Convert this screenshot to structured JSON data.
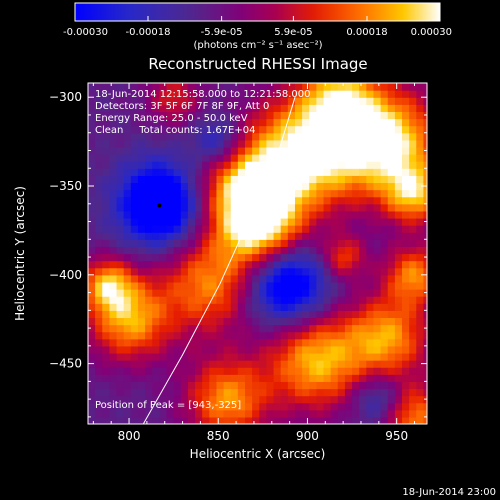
{
  "chart_data": {
    "type": "heatmap",
    "title": "Reconstructed RHESSI Image",
    "xlabel": "Heliocentric X (arcsec)",
    "ylabel": "Heliocentric Y (arcsec)",
    "xlim": [
      777,
      967
    ],
    "ylim": [
      -484,
      -292
    ],
    "x_ticks": [
      "800",
      "850",
      "900",
      "950"
    ],
    "y_ticks": [
      "-300",
      "-350",
      "-400",
      "-450"
    ],
    "x_tick_values": [
      800,
      850,
      900,
      950
    ],
    "y_tick_values": [
      -300,
      -350,
      -400,
      -450
    ],
    "colorbar": {
      "range": [
        -0.0003,
        0.0003
      ],
      "tick_labels": [
        "-0.00030",
        "-0.00018",
        "-5.9e-05",
        "5.9e-05",
        "0.00018",
        "0.00030"
      ],
      "tick_values": [
        -0.0003,
        -0.00018,
        -5.9e-05,
        5.9e-05,
        0.00018,
        0.0003
      ],
      "unit_label": "(photons cm⁻² s⁻¹ asec⁻²)"
    },
    "info_lines": [
      "18-Jun-2014 12:15:58.000 to 12:21:58.000",
      "Detectors: 3F 5F 6F 7F 8F 9F, Att 0",
      "Energy Range: 25.0 - 50.0 keV",
      "Clean     Total counts: 1.67E+04"
    ],
    "peak_text": "Position of Peak = [943,-325]",
    "peak_position": [
      943,
      -325
    ],
    "footer_timestamp": "18-Jun-2014 23:00",
    "limb_curve": [
      [
        808,
        -484
      ],
      [
        830,
        -445
      ],
      [
        851,
        -405
      ],
      [
        869,
        -365
      ],
      [
        884,
        -330
      ],
      [
        893,
        -300
      ]
    ],
    "marker_point": [
      817,
      -361
    ],
    "bright_blobs": [
      {
        "x": 900,
        "y": -330,
        "r": 30,
        "v": 1.0
      },
      {
        "x": 865,
        "y": -352,
        "r": 26,
        "v": 0.9
      },
      {
        "x": 875,
        "y": -375,
        "r": 22,
        "v": 0.8
      },
      {
        "x": 845,
        "y": -405,
        "r": 26,
        "v": 0.7
      },
      {
        "x": 918,
        "y": -300,
        "r": 20,
        "v": 0.65
      },
      {
        "x": 945,
        "y": -325,
        "r": 28,
        "v": 1.0
      },
      {
        "x": 960,
        "y": -355,
        "r": 16,
        "v": 0.7
      },
      {
        "x": 825,
        "y": -300,
        "r": 14,
        "v": 0.45
      },
      {
        "x": 800,
        "y": -425,
        "r": 22,
        "v": 0.8
      },
      {
        "x": 788,
        "y": -405,
        "r": 14,
        "v": 0.7
      },
      {
        "x": 855,
        "y": -470,
        "r": 22,
        "v": 0.75
      },
      {
        "x": 905,
        "y": -448,
        "r": 26,
        "v": 0.85
      },
      {
        "x": 945,
        "y": -435,
        "r": 22,
        "v": 0.75
      },
      {
        "x": 960,
        "y": -400,
        "r": 16,
        "v": 0.7
      },
      {
        "x": 960,
        "y": -480,
        "r": 18,
        "v": 0.7
      },
      {
        "x": 920,
        "y": -390,
        "r": 12,
        "v": 0.55
      }
    ],
    "dark_blobs": [
      {
        "x": 818,
        "y": -360,
        "r": 22,
        "v": -1.0
      },
      {
        "x": 888,
        "y": -405,
        "r": 22,
        "v": -0.9
      },
      {
        "x": 850,
        "y": -325,
        "r": 14,
        "v": -0.5
      },
      {
        "x": 940,
        "y": -470,
        "r": 14,
        "v": -0.45
      }
    ]
  }
}
